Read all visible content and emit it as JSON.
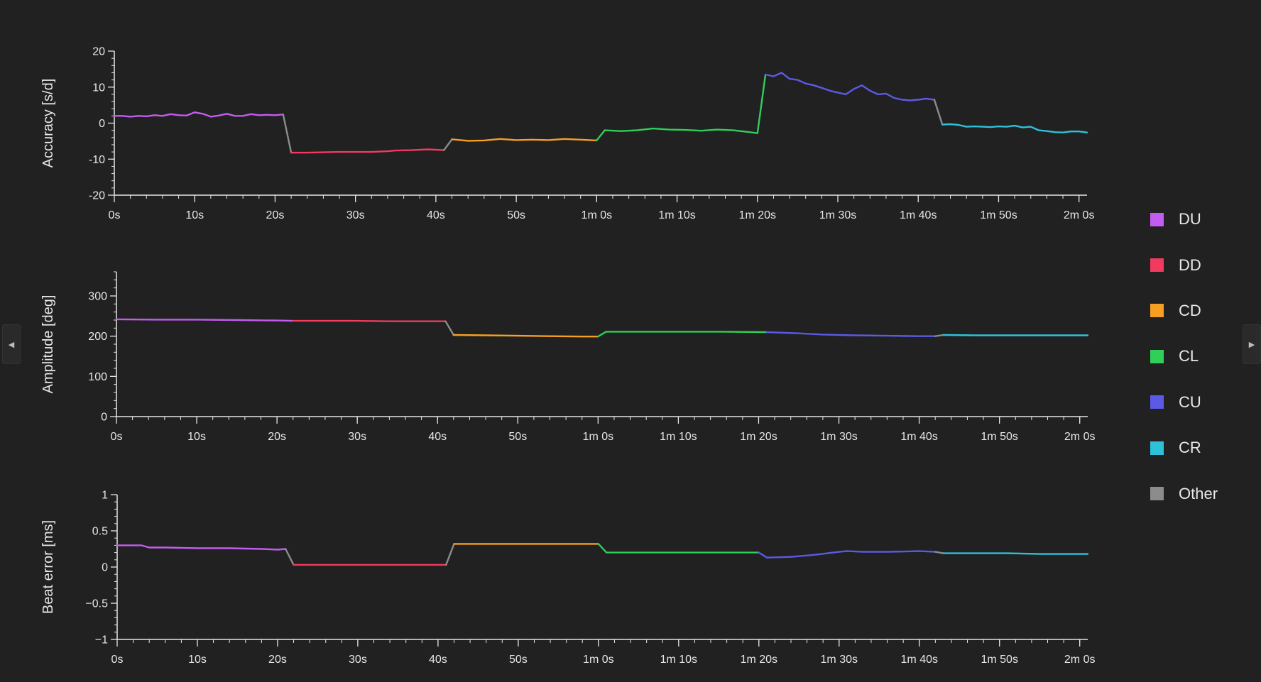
{
  "colors": {
    "DU": "#c35cf0",
    "DD": "#f23a5f",
    "CD": "#f5a021",
    "CL": "#2fcf5a",
    "CU": "#5a5ae6",
    "CR": "#2ec2d8",
    "Other": "#8c8c8c",
    "axis": "#e6e6e6",
    "background": "#212121"
  },
  "legend": {
    "items": [
      {
        "key": "DU",
        "label": "DU"
      },
      {
        "key": "DD",
        "label": "DD"
      },
      {
        "key": "CD",
        "label": "CD"
      },
      {
        "key": "CL",
        "label": "CL"
      },
      {
        "key": "CU",
        "label": "CU"
      },
      {
        "key": "CR",
        "label": "CR"
      },
      {
        "key": "Other",
        "label": "Other"
      }
    ]
  },
  "nav": {
    "left_icon": "chevron-left-icon",
    "right_icon": "chevron-right-icon"
  },
  "chart_data": [
    {
      "type": "line",
      "id": "accuracy",
      "ylabel": "Accuracy [s/d]",
      "xlabel": "",
      "xlim": [
        0,
        121
      ],
      "ylim": [
        -20,
        20
      ],
      "yticks": [
        -20,
        -10,
        0,
        10,
        20
      ],
      "yminor": 2,
      "xticks": [
        0,
        10,
        20,
        30,
        40,
        50,
        60,
        70,
        80,
        90,
        100,
        110,
        120
      ],
      "xtick_labels": [
        "0s",
        "10s",
        "20s",
        "30s",
        "40s",
        "50s",
        "1m 0s",
        "1m 10s",
        "1m 20s",
        "1m 30s",
        "1m 40s",
        "1m 50s",
        "2m 0s"
      ],
      "xminor": 2,
      "segments": [
        {
          "series": "DU",
          "x": [
            0,
            1,
            2,
            3,
            4,
            5,
            6,
            7,
            8,
            9,
            10,
            11,
            12,
            13,
            14,
            15,
            16,
            17,
            18,
            19,
            20,
            21
          ],
          "y": [
            2,
            2,
            1.8,
            2,
            1.9,
            2.2,
            2,
            2.5,
            2.2,
            2.1,
            3,
            2.6,
            1.8,
            2.1,
            2.6,
            2,
            2,
            2.5,
            2.2,
            2.3,
            2.2,
            2.4
          ]
        },
        {
          "series": "Other",
          "x": [
            21,
            22
          ],
          "y": [
            2.4,
            -8.2
          ]
        },
        {
          "series": "DD",
          "x": [
            22,
            24,
            26,
            28,
            30,
            32,
            34,
            35,
            37,
            39,
            41
          ],
          "y": [
            -8.2,
            -8.2,
            -8.1,
            -8,
            -8,
            -8,
            -7.8,
            -7.6,
            -7.5,
            -7.3,
            -7.5
          ]
        },
        {
          "series": "Other",
          "x": [
            41,
            42
          ],
          "y": [
            -7.5,
            -4.5
          ]
        },
        {
          "series": "CD",
          "x": [
            42,
            44,
            46,
            48,
            50,
            52,
            54,
            56,
            58,
            60
          ],
          "y": [
            -4.5,
            -4.9,
            -4.8,
            -4.4,
            -4.7,
            -4.6,
            -4.7,
            -4.4,
            -4.6,
            -4.8
          ]
        },
        {
          "series": "CL",
          "x": [
            60,
            61,
            63,
            65,
            67,
            69,
            71,
            73,
            75,
            77,
            79,
            80
          ],
          "y": [
            -4.8,
            -2,
            -2.2,
            -2,
            -1.5,
            -1.8,
            -1.9,
            -2.1,
            -1.8,
            -2,
            -2.5,
            -2.8
          ]
        },
        {
          "series": "CL",
          "x": [
            80,
            81
          ],
          "y": [
            -2.8,
            13.5
          ]
        },
        {
          "series": "CU",
          "x": [
            81,
            82,
            83,
            84,
            85,
            86,
            87,
            88,
            89,
            90,
            91,
            92,
            93,
            94,
            95,
            96,
            97,
            98,
            99,
            100,
            101,
            102
          ],
          "y": [
            13.5,
            13,
            14,
            12.3,
            12,
            11,
            10.5,
            9.8,
            9,
            8.5,
            8,
            9.5,
            10.5,
            9,
            8,
            8.2,
            7,
            6.5,
            6.3,
            6.5,
            6.8,
            6.5
          ]
        },
        {
          "series": "Other",
          "x": [
            102,
            103
          ],
          "y": [
            6.5,
            -0.4
          ]
        },
        {
          "series": "CR",
          "x": [
            103,
            104,
            105,
            106,
            107,
            108,
            109,
            110,
            111,
            112,
            113,
            114,
            115,
            116,
            117,
            118,
            119,
            120,
            121
          ],
          "y": [
            -0.4,
            -0.3,
            -0.5,
            -1,
            -0.9,
            -1,
            -1.1,
            -0.9,
            -1,
            -0.7,
            -1.2,
            -1,
            -2,
            -2.2,
            -2.5,
            -2.6,
            -2.3,
            -2.3,
            -2.6
          ]
        }
      ]
    },
    {
      "type": "line",
      "id": "amplitude",
      "ylabel": "Amplitude [deg]",
      "xlabel": "",
      "xlim": [
        0,
        121
      ],
      "ylim": [
        0,
        360
      ],
      "yticks": [
        0,
        100,
        200,
        300
      ],
      "yminor": 20,
      "xticks": [
        0,
        10,
        20,
        30,
        40,
        50,
        60,
        70,
        80,
        90,
        100,
        110,
        120
      ],
      "xtick_labels": [
        "0s",
        "10s",
        "20s",
        "30s",
        "40s",
        "50s",
        "1m 0s",
        "1m 10s",
        "1m 20s",
        "1m 30s",
        "1m 40s",
        "1m 50s",
        "2m 0s"
      ],
      "xminor": 2,
      "segments": [
        {
          "series": "DU",
          "x": [
            0,
            5,
            10,
            15,
            20,
            22
          ],
          "y": [
            242,
            241,
            241,
            240,
            239,
            238
          ]
        },
        {
          "series": "DD",
          "x": [
            22,
            26,
            30,
            34,
            38,
            41
          ],
          "y": [
            238,
            238,
            238,
            237,
            237,
            237
          ]
        },
        {
          "series": "Other",
          "x": [
            41,
            42
          ],
          "y": [
            237,
            203
          ]
        },
        {
          "series": "CD",
          "x": [
            42,
            46,
            50,
            54,
            58,
            60
          ],
          "y": [
            203,
            202,
            201,
            200,
            199,
            199
          ]
        },
        {
          "series": "CL",
          "x": [
            60,
            61,
            65,
            70,
            75,
            81
          ],
          "y": [
            199,
            211,
            211,
            211,
            211,
            210
          ]
        },
        {
          "series": "CU",
          "x": [
            81,
            85,
            88,
            92,
            96,
            100,
            102
          ],
          "y": [
            210,
            207,
            204,
            202,
            201,
            200,
            200
          ]
        },
        {
          "series": "Other",
          "x": [
            102,
            103
          ],
          "y": [
            200,
            203
          ]
        },
        {
          "series": "CR",
          "x": [
            103,
            107,
            111,
            115,
            119,
            121
          ],
          "y": [
            203,
            202,
            202,
            202,
            202,
            202
          ]
        }
      ]
    },
    {
      "type": "line",
      "id": "beat-error",
      "ylabel": "Beat error [ms]",
      "xlabel": "",
      "xlim": [
        0,
        121
      ],
      "ylim": [
        -1,
        1
      ],
      "yticks": [
        -1,
        -0.5,
        0,
        0.5,
        1
      ],
      "ytick_labels": [
        "−1",
        "−0.5",
        "0",
        "0.5",
        "1"
      ],
      "yminor": 0.1,
      "xticks": [
        0,
        10,
        20,
        30,
        40,
        50,
        60,
        70,
        80,
        90,
        100,
        110,
        120
      ],
      "xtick_labels": [
        "0s",
        "10s",
        "20s",
        "30s",
        "40s",
        "50s",
        "1m 0s",
        "1m 10s",
        "1m 20s",
        "1m 30s",
        "1m 40s",
        "1m 50s",
        "2m 0s"
      ],
      "xminor": 2,
      "segments": [
        {
          "series": "DU",
          "x": [
            0,
            1,
            3,
            4,
            6,
            10,
            14,
            18,
            20,
            21
          ],
          "y": [
            0.3,
            0.3,
            0.3,
            0.27,
            0.27,
            0.26,
            0.26,
            0.25,
            0.24,
            0.25
          ]
        },
        {
          "series": "Other",
          "x": [
            21,
            22
          ],
          "y": [
            0.25,
            0.03
          ]
        },
        {
          "series": "DD",
          "x": [
            22,
            26,
            30,
            34,
            38,
            41
          ],
          "y": [
            0.03,
            0.03,
            0.03,
            0.03,
            0.03,
            0.03
          ]
        },
        {
          "series": "Other",
          "x": [
            41,
            42
          ],
          "y": [
            0.03,
            0.32
          ]
        },
        {
          "series": "CD",
          "x": [
            42,
            46,
            50,
            54,
            58,
            60
          ],
          "y": [
            0.32,
            0.32,
            0.32,
            0.32,
            0.32,
            0.32
          ]
        },
        {
          "series": "CL",
          "x": [
            60,
            61,
            65,
            70,
            75,
            80
          ],
          "y": [
            0.32,
            0.2,
            0.2,
            0.2,
            0.2,
            0.2
          ]
        },
        {
          "series": "CU",
          "x": [
            80,
            81,
            84,
            87,
            90,
            91,
            93,
            96,
            100,
            102
          ],
          "y": [
            0.2,
            0.13,
            0.14,
            0.17,
            0.21,
            0.22,
            0.21,
            0.21,
            0.22,
            0.21
          ]
        },
        {
          "series": "Other",
          "x": [
            102,
            103
          ],
          "y": [
            0.21,
            0.19
          ]
        },
        {
          "series": "CR",
          "x": [
            103,
            107,
            111,
            115,
            119,
            121
          ],
          "y": [
            0.19,
            0.19,
            0.19,
            0.18,
            0.18,
            0.18
          ]
        }
      ]
    }
  ]
}
